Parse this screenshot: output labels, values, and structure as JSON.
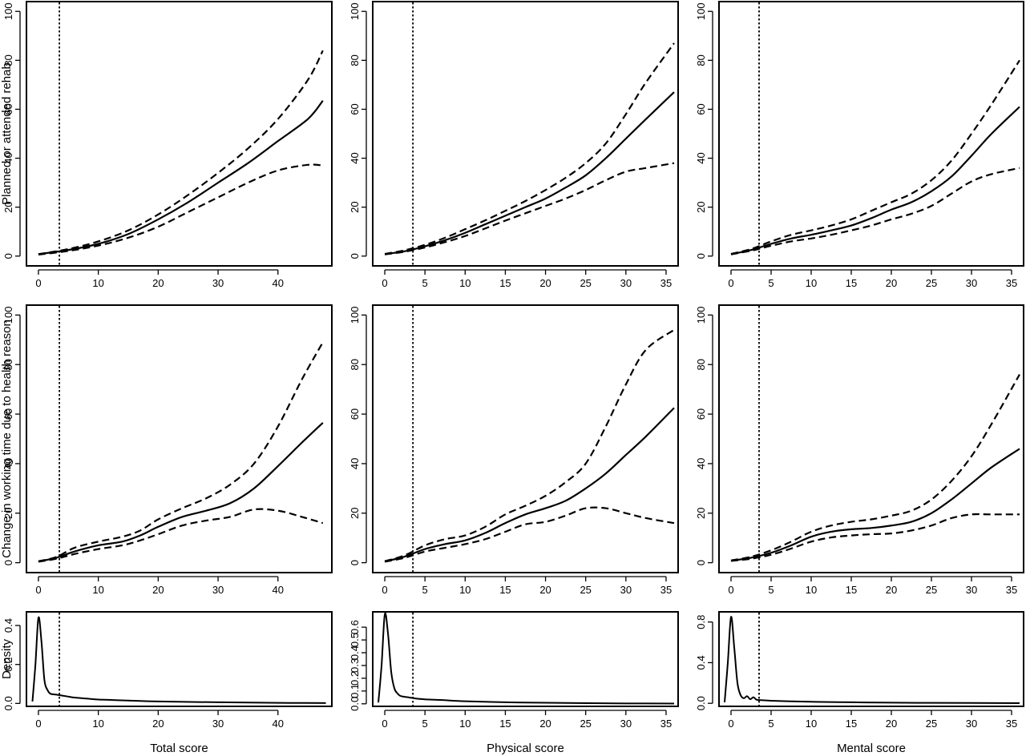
{
  "chart_data": [
    {
      "type": "line",
      "row": "top",
      "col": "total",
      "xlabel": "",
      "ylabel": "Planned or attended rehab",
      "xlim": [
        -2,
        49
      ],
      "ylim": [
        -4,
        104
      ],
      "xticks": [
        0,
        10,
        20,
        30,
        40
      ],
      "yticks": [
        0,
        20,
        40,
        60,
        80,
        100
      ],
      "vline": 3.5,
      "series": [
        {
          "role": "estimate",
          "x": [
            0,
            5,
            10,
            15,
            20,
            25,
            30,
            35,
            40,
            45,
            47.5
          ],
          "y": [
            0.8,
            2.5,
            5,
            9,
            15,
            22,
            30,
            38,
            47,
            56,
            63.5
          ]
        },
        {
          "role": "upper",
          "x": [
            0,
            5,
            10,
            15,
            20,
            25,
            30,
            35,
            40,
            45,
            47.5
          ],
          "y": [
            0.8,
            2.9,
            6,
            10.5,
            17,
            25,
            34,
            44,
            56,
            72,
            84
          ]
        },
        {
          "role": "lower",
          "x": [
            0,
            5,
            10,
            15,
            20,
            25,
            30,
            35,
            40,
            45,
            47.5
          ],
          "y": [
            0.6,
            2.1,
            4.3,
            7.5,
            12,
            18,
            24,
            30,
            35,
            37.3,
            37
          ]
        }
      ]
    },
    {
      "type": "line",
      "row": "top",
      "col": "physical",
      "xlabel": "",
      "ylabel": "",
      "xlim": [
        -1.5,
        36.5
      ],
      "ylim": [
        -4,
        104
      ],
      "xticks": [
        0,
        5,
        10,
        15,
        20,
        25,
        30,
        35
      ],
      "yticks": [
        0,
        20,
        40,
        60,
        80,
        100
      ],
      "vline": 3.5,
      "series": [
        {
          "role": "estimate",
          "x": [
            0,
            2.5,
            5,
            7.5,
            10,
            12.5,
            15,
            17.5,
            20,
            22.5,
            25,
            27.5,
            30,
            32.5,
            36
          ],
          "y": [
            0.8,
            2,
            4,
            6.5,
            9.5,
            13,
            16.5,
            20,
            23.5,
            28,
            33,
            40,
            48,
            56,
            67
          ]
        },
        {
          "role": "upper",
          "x": [
            0,
            2.5,
            5,
            7.5,
            10,
            12.5,
            15,
            17.5,
            20,
            22.5,
            25,
            27.5,
            30,
            32.5,
            36
          ],
          "y": [
            0.9,
            2.4,
            4.6,
            7.5,
            11,
            14.6,
            18.5,
            22.5,
            27,
            32,
            38,
            46,
            58,
            71,
            87
          ]
        },
        {
          "role": "lower",
          "x": [
            0,
            2.5,
            5,
            7.5,
            10,
            12.5,
            15,
            17.5,
            20,
            22.5,
            25,
            27.5,
            30,
            32.5,
            36
          ],
          "y": [
            0.7,
            1.8,
            3.5,
            5.7,
            8.2,
            11.3,
            14.5,
            17.5,
            20.5,
            23.5,
            27,
            31,
            34.5,
            36,
            38
          ]
        }
      ]
    },
    {
      "type": "line",
      "row": "top",
      "col": "mental",
      "xlabel": "",
      "ylabel": "",
      "xlim": [
        -1.5,
        36.5
      ],
      "ylim": [
        -4,
        104
      ],
      "xticks": [
        0,
        5,
        10,
        15,
        20,
        25,
        30,
        35
      ],
      "yticks": [
        0,
        20,
        40,
        60,
        80,
        100
      ],
      "vline": 3.5,
      "series": [
        {
          "role": "estimate",
          "x": [
            0,
            2.5,
            5,
            7.5,
            10,
            12.5,
            15,
            17.5,
            20,
            22.5,
            25,
            27.5,
            30,
            32.5,
            36
          ],
          "y": [
            0.8,
            2.5,
            5,
            7.2,
            8.7,
            10.5,
            12.5,
            15.5,
            19,
            22,
            26.5,
            32.5,
            41,
            50,
            61
          ]
        },
        {
          "role": "upper",
          "x": [
            0,
            2.5,
            5,
            7.5,
            10,
            12.5,
            15,
            17.5,
            20,
            22.5,
            25,
            27.5,
            30,
            32.5,
            36
          ],
          "y": [
            0.9,
            2.9,
            6,
            8.7,
            10.5,
            12.5,
            15,
            18.5,
            22,
            25.5,
            31,
            39,
            50,
            62,
            80
          ]
        },
        {
          "role": "lower",
          "x": [
            0,
            2.5,
            5,
            7.5,
            10,
            12.5,
            15,
            17.5,
            20,
            22.5,
            25,
            27.5,
            30,
            32.5,
            36
          ],
          "y": [
            0.7,
            2.2,
            4.2,
            6,
            7.2,
            8.7,
            10.5,
            12.5,
            15,
            17.3,
            20.5,
            25.5,
            30.5,
            33.5,
            36
          ]
        }
      ]
    },
    {
      "type": "line",
      "row": "middle",
      "col": "total",
      "xlabel": "",
      "ylabel": "Change in working time due to health reason",
      "xlim": [
        -2,
        49
      ],
      "ylim": [
        -4,
        104
      ],
      "xticks": [
        0,
        10,
        20,
        30,
        40
      ],
      "yticks": [
        0,
        20,
        40,
        60,
        80,
        100
      ],
      "vline": 3.5,
      "series": [
        {
          "role": "estimate",
          "x": [
            0,
            3,
            6,
            10,
            14,
            17,
            20,
            24,
            28,
            32,
            36,
            40,
            44,
            47.5
          ],
          "y": [
            0.5,
            2,
            4.5,
            7,
            8.5,
            11,
            14.5,
            18.5,
            21,
            24,
            30,
            39,
            48.5,
            56.5
          ]
        },
        {
          "role": "upper",
          "x": [
            0,
            3,
            6,
            10,
            14,
            17,
            20,
            24,
            28,
            32,
            36,
            40,
            44,
            47.5
          ],
          "y": [
            0.6,
            2.3,
            6,
            8.5,
            10.5,
            13,
            17.5,
            22,
            26,
            31.5,
            40,
            55,
            74,
            89
          ]
        },
        {
          "role": "lower",
          "x": [
            0,
            3,
            6,
            10,
            14,
            17,
            20,
            24,
            28,
            32,
            36,
            40,
            44,
            47.5
          ],
          "y": [
            0.4,
            1.6,
            3.5,
            5.5,
            7,
            9,
            11.5,
            15,
            17,
            18.5,
            21.5,
            21,
            18.5,
            16
          ]
        }
      ]
    },
    {
      "type": "line",
      "row": "middle",
      "col": "physical",
      "xlabel": "",
      "ylabel": "",
      "xlim": [
        -1.5,
        36.5
      ],
      "ylim": [
        -4,
        104
      ],
      "xticks": [
        0,
        5,
        10,
        15,
        20,
        25,
        30,
        35
      ],
      "yticks": [
        0,
        20,
        40,
        60,
        80,
        100
      ],
      "vline": 3.5,
      "series": [
        {
          "role": "estimate",
          "x": [
            0,
            2.5,
            5,
            7.5,
            10,
            12.5,
            15,
            17.5,
            20,
            22.5,
            25,
            27.5,
            30,
            32.5,
            36
          ],
          "y": [
            0.5,
            2.5,
            5.5,
            7.5,
            9,
            12,
            16,
            19.5,
            22,
            25,
            30,
            36,
            43.5,
            51,
            62.5
          ]
        },
        {
          "role": "upper",
          "x": [
            0,
            2.5,
            5,
            7.5,
            10,
            12.5,
            15,
            17.5,
            20,
            22.5,
            25,
            27.5,
            30,
            32.5,
            36
          ],
          "y": [
            0.6,
            3,
            7,
            9.5,
            11,
            14.5,
            19.5,
            23,
            27,
            32.5,
            40,
            55,
            72,
            86,
            94
          ]
        },
        {
          "role": "lower",
          "x": [
            0,
            2.5,
            5,
            7.5,
            10,
            12.5,
            15,
            17.5,
            20,
            22.5,
            25,
            27.5,
            30,
            32.5,
            36
          ],
          "y": [
            0.4,
            2,
            4.5,
            6,
            7.5,
            9.5,
            12.5,
            15.5,
            16.5,
            19,
            22,
            22,
            20,
            18,
            16
          ]
        }
      ]
    },
    {
      "type": "line",
      "row": "middle",
      "col": "mental",
      "xlabel": "",
      "ylabel": "",
      "xlim": [
        -1.5,
        36.5
      ],
      "ylim": [
        -4,
        104
      ],
      "xticks": [
        0,
        5,
        10,
        15,
        20,
        25,
        30,
        35
      ],
      "yticks": [
        0,
        20,
        40,
        60,
        80,
        100
      ],
      "vline": 3.5,
      "series": [
        {
          "role": "estimate",
          "x": [
            0,
            2.5,
            5,
            7.5,
            10,
            12.5,
            15,
            17.5,
            20,
            22.5,
            25,
            27.5,
            30,
            32.5,
            36
          ],
          "y": [
            0.8,
            2,
            4,
            7,
            10.5,
            12.5,
            13.5,
            14,
            15,
            16.5,
            20,
            25.5,
            32,
            38.5,
            46
          ]
        },
        {
          "role": "upper",
          "x": [
            0,
            2.5,
            5,
            7.5,
            10,
            12.5,
            15,
            17.5,
            20,
            22.5,
            25,
            27.5,
            30,
            32.5,
            36
          ],
          "y": [
            0.9,
            2.4,
            5,
            8.5,
            12.5,
            15,
            16.5,
            17.5,
            19,
            21,
            25.5,
            33,
            43,
            56,
            76
          ]
        },
        {
          "role": "lower",
          "x": [
            0,
            2.5,
            5,
            7.5,
            10,
            12.5,
            15,
            17.5,
            20,
            22.5,
            25,
            27.5,
            30,
            32.5,
            36
          ],
          "y": [
            0.7,
            1.6,
            3.2,
            5.7,
            8.5,
            10.2,
            11,
            11.5,
            11.8,
            13,
            15,
            18,
            19.5,
            19.5,
            19.5
          ]
        }
      ]
    },
    {
      "type": "line",
      "row": "bottom",
      "col": "total",
      "xlabel": "Total score",
      "ylabel": "Density",
      "xlim": [
        -2,
        49
      ],
      "ylim": [
        -0.015,
        0.47
      ],
      "xticks": [
        0,
        10,
        20,
        30,
        40
      ],
      "yticks": [
        0.0,
        0.2,
        0.4
      ],
      "vline": 3.5,
      "series": [
        {
          "role": "density",
          "x": [
            -1,
            -0.5,
            0,
            0.5,
            1,
            1.5,
            2,
            3,
            4,
            5,
            6,
            8,
            10,
            15,
            20,
            30,
            40,
            48
          ],
          "y": [
            0.01,
            0.2,
            0.44,
            0.32,
            0.12,
            0.07,
            0.05,
            0.045,
            0.04,
            0.035,
            0.03,
            0.025,
            0.02,
            0.015,
            0.01,
            0.006,
            0.003,
            0.002
          ]
        }
      ]
    },
    {
      "type": "line",
      "row": "bottom",
      "col": "physical",
      "xlabel": "Physical score",
      "ylabel": "",
      "xlim": [
        -1.5,
        36.5
      ],
      "ylim": [
        -0.02,
        0.72
      ],
      "xticks": [
        0,
        5,
        10,
        15,
        20,
        25,
        30,
        35
      ],
      "yticks": [
        0.0,
        0.1,
        0.2,
        0.3,
        0.4,
        0.5,
        0.6
      ],
      "vline": 3.5,
      "series": [
        {
          "role": "density",
          "x": [
            -0.8,
            -0.4,
            0,
            0.4,
            0.8,
            1.2,
            1.6,
            2,
            3,
            4,
            5,
            7,
            10,
            15,
            20,
            25,
            30,
            36
          ],
          "y": [
            0.01,
            0.3,
            0.7,
            0.55,
            0.25,
            0.12,
            0.08,
            0.06,
            0.05,
            0.04,
            0.035,
            0.03,
            0.02,
            0.012,
            0.008,
            0.005,
            0.003,
            0.002
          ]
        }
      ]
    },
    {
      "type": "line",
      "row": "bottom",
      "col": "mental",
      "xlabel": "Mental score",
      "ylabel": "",
      "xlim": [
        -1.5,
        36.5
      ],
      "ylim": [
        -0.03,
        0.9
      ],
      "xticks": [
        0,
        5,
        10,
        15,
        20,
        25,
        30,
        35
      ],
      "yticks": [
        0.0,
        0.4,
        0.8
      ],
      "vline": 3.5,
      "series": [
        {
          "role": "density",
          "x": [
            -0.8,
            -0.4,
            0,
            0.4,
            0.8,
            1.2,
            1.6,
            2,
            2.4,
            2.8,
            3.2,
            4,
            5,
            7,
            10,
            15,
            20,
            30,
            36
          ],
          "y": [
            0.01,
            0.4,
            0.85,
            0.55,
            0.2,
            0.08,
            0.05,
            0.07,
            0.04,
            0.06,
            0.035,
            0.03,
            0.025,
            0.02,
            0.015,
            0.01,
            0.006,
            0.003,
            0.002
          ]
        }
      ]
    }
  ]
}
